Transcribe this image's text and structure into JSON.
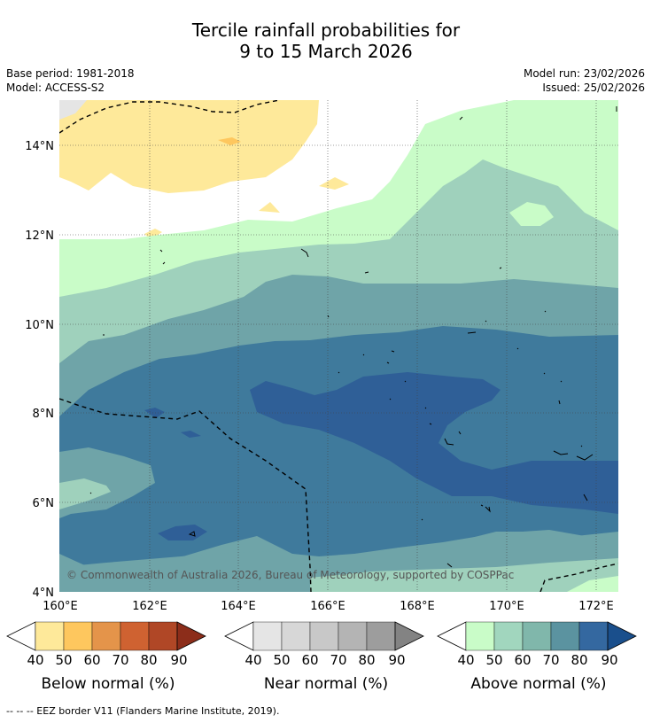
{
  "title_line1": "Tercile rainfall probabilities for",
  "title_line2": "9 to 15 March 2026",
  "base_period": "Base period: 1981-2018",
  "model": "Model: ACCESS-S2",
  "model_run": "Model run: 23/02/2026",
  "issued": "Issued: 25/02/2026",
  "copyright": "© Commonwealth of Australia 2026, Bureau of Meteorology, supported by COSPPac",
  "lat_labels": [
    "14°N",
    "12°N",
    "10°N",
    "8°N",
    "6°N",
    "4°N"
  ],
  "lon_labels": [
    "160°E",
    "162°E",
    "164°E",
    "166°E",
    "168°E",
    "170°E",
    "172°E"
  ],
  "colorbars": [
    {
      "name": "below",
      "label": "Below normal (%)",
      "ticks": [
        "40",
        "50",
        "60",
        "70",
        "80",
        "90"
      ],
      "colors": [
        "#ffffff",
        "#fee99a",
        "#fec75e",
        "#e4944a",
        "#cf6231",
        "#b04726",
        "#8c2d1a"
      ]
    },
    {
      "name": "near",
      "label": "Near normal (%)",
      "ticks": [
        "40",
        "50",
        "60",
        "70",
        "80",
        "90"
      ],
      "colors": [
        "#ffffff",
        "#e5e5e5",
        "#d7d7d7",
        "#c8c8c8",
        "#b4b4b4",
        "#9d9d9d",
        "#838383"
      ]
    },
    {
      "name": "above",
      "label": "Above normal (%)",
      "ticks": [
        "40",
        "50",
        "60",
        "70",
        "80",
        "90"
      ],
      "colors": [
        "#ffffff",
        "#c9fcc8",
        "#a1d6be",
        "#80b7ab",
        "#5b93a0",
        "#3468a0",
        "#1a4f8c"
      ]
    }
  ],
  "footer": "--  --  -- EEZ border V11 (Flanders Marine Institute, 2019).",
  "colors": {
    "white": "#ffffff",
    "yellow": "#fee99a",
    "orange": "#fec75e",
    "above50": "#c9fcc8",
    "above60": "#9fd1bc",
    "above70": "#6fa4a8",
    "above80": "#3f7a9c",
    "above90": "#2f5f97"
  }
}
